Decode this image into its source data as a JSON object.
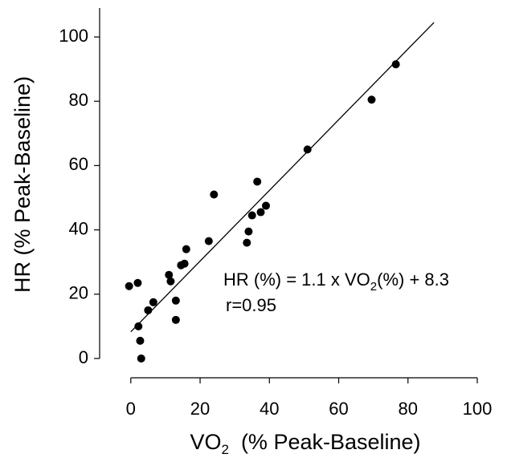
{
  "chart_data": {
    "type": "scatter",
    "y_label": "HR (% Peak-Baseline)",
    "x_label": [
      "VO",
      "2",
      "  (% Peak-Baseline)"
    ],
    "annotation": [
      "HR (%) = 1.1 x VO",
      "2",
      "(%) + 8.3"
    ],
    "annotation_2": "r=0.95",
    "color": "#000000",
    "x": [
      -0.5,
      2,
      2.2,
      2.7,
      3,
      5,
      6.5,
      11,
      11.5,
      13,
      13,
      14.5,
      15.5,
      16,
      22.5,
      24,
      33.5,
      34,
      35,
      36.5,
      37.5,
      39,
      51,
      69.5,
      76.5
    ],
    "values": [
      22.5,
      23.5,
      10,
      5.5,
      0,
      15,
      17.5,
      26,
      24,
      18,
      12,
      29,
      29.5,
      34,
      36.5,
      51,
      36,
      39.5,
      44.5,
      55,
      45.5,
      47.5,
      65,
      80.5,
      91.5
    ],
    "fit_line": {
      "x": [
        0,
        87.5
      ],
      "y": [
        8.3,
        104.5
      ]
    },
    "xlim": [
      -9,
      100
    ],
    "ylim": [
      -6,
      109
    ],
    "xticks": [
      0,
      20,
      40,
      60,
      80,
      100
    ],
    "yticks": [
      0,
      20,
      40,
      60,
      80,
      100
    ]
  }
}
